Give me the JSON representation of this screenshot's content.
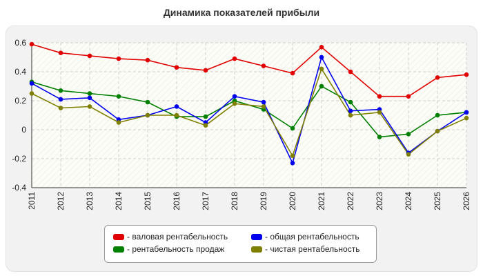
{
  "chart_data": {
    "type": "line",
    "title": "Динамика показателей прибыли",
    "xlabel": "",
    "ylabel": "",
    "categories": [
      "2011",
      "2012",
      "2013",
      "2014",
      "2015",
      "2016",
      "2017",
      "2018",
      "2019",
      "2020",
      "2021",
      "2022",
      "2023",
      "2024",
      "2025",
      "2026"
    ],
    "ylim": [
      -0.4,
      0.6
    ],
    "yticks": [
      "0.6",
      "0.4",
      "0.2",
      "0",
      "-0.2",
      "-0.4"
    ],
    "ytick_values": [
      0.6,
      0.4,
      0.2,
      0,
      -0.2,
      -0.4
    ],
    "grid": true,
    "legend_position": "bottom-center",
    "series": [
      {
        "name": "- валовая рентабельность",
        "color": "#e00000",
        "values": [
          0.59,
          0.53,
          0.51,
          0.49,
          0.48,
          0.43,
          0.41,
          0.49,
          0.44,
          0.39,
          0.57,
          0.4,
          0.23,
          0.23,
          0.36,
          0.38
        ]
      },
      {
        "name": "- рентабельность продаж",
        "color": "#008000",
        "values": [
          0.33,
          0.27,
          0.25,
          0.23,
          0.19,
          0.09,
          0.09,
          0.2,
          0.14,
          0.01,
          0.3,
          0.19,
          -0.05,
          -0.03,
          0.1,
          0.12
        ]
      },
      {
        "name": "- общая рентабельность",
        "color": "#0000ee",
        "values": [
          0.32,
          0.21,
          0.22,
          0.07,
          0.1,
          0.16,
          0.05,
          0.23,
          0.19,
          -0.23,
          0.5,
          0.13,
          0.14,
          -0.16,
          -0.01,
          0.12
        ]
      },
      {
        "name": "- чистая рентабельность",
        "color": "#808000",
        "values": [
          0.25,
          0.15,
          0.16,
          0.05,
          0.1,
          0.1,
          0.03,
          0.18,
          0.16,
          -0.18,
          0.42,
          0.1,
          0.12,
          -0.17,
          -0.01,
          0.08
        ]
      }
    ]
  }
}
